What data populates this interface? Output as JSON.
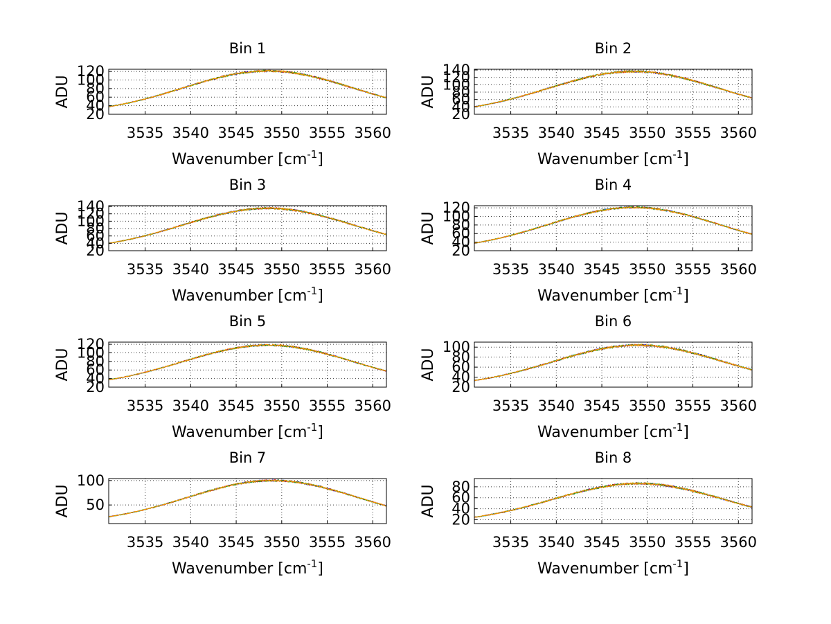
{
  "chart_data": [
    {
      "type": "line",
      "title": "Bin 1",
      "xlabel": "Wavenumber [cm",
      "xlabel_sup": "-1",
      "xlabel_suffix": "]",
      "ylabel": "ADU",
      "xlim": [
        3531,
        3561.5
      ],
      "ylim": [
        20,
        125
      ],
      "xticks": [
        3535,
        3540,
        3545,
        3550,
        3555,
        3560
      ],
      "yticks": [
        20,
        40,
        60,
        80,
        100,
        120
      ],
      "ytick_labels": [
        "20",
        "40",
        "60",
        "80",
        "100",
        "120"
      ],
      "series": [
        {
          "color": "#0000cc",
          "peak": 121,
          "center": 3548.5,
          "width": 16.5,
          "base": 20,
          "noise": 2.2
        }
      ]
    },
    {
      "type": "line",
      "title": "Bin 2",
      "xlabel": "Wavenumber [cm",
      "xlabel_sup": "-1",
      "xlabel_suffix": "]",
      "ylabel": "ADU",
      "xlim": [
        3531,
        3561.5
      ],
      "ylim": [
        20,
        142
      ],
      "xticks": [
        3535,
        3540,
        3545,
        3550,
        3555,
        3560
      ],
      "yticks": [
        20,
        40,
        60,
        80,
        100,
        120,
        140
      ],
      "ytick_labels": [
        "20",
        "40",
        "60",
        "80",
        "100",
        "120",
        "140"
      ],
      "series": [
        {
          "color": "#0000cc",
          "peak": 136,
          "center": 3548.5,
          "width": 16.5,
          "base": 20,
          "noise": 2.6
        }
      ]
    },
    {
      "type": "line",
      "title": "Bin 3",
      "xlabel": "Wavenumber [cm",
      "xlabel_sup": "-1",
      "xlabel_suffix": "]",
      "ylabel": "ADU",
      "xlim": [
        3531,
        3561.5
      ],
      "ylim": [
        20,
        142
      ],
      "xticks": [
        3535,
        3540,
        3545,
        3550,
        3555,
        3560
      ],
      "yticks": [
        20,
        40,
        60,
        80,
        100,
        120,
        140
      ],
      "ytick_labels": [
        "20",
        "40",
        "60",
        "80",
        "100",
        "120",
        "140"
      ],
      "series": [
        {
          "color": "#0000cc",
          "peak": 135,
          "center": 3548.5,
          "width": 16.5,
          "base": 20,
          "noise": 2.4
        }
      ]
    },
    {
      "type": "line",
      "title": "Bin 4",
      "xlabel": "Wavenumber [cm",
      "xlabel_sup": "-1",
      "xlabel_suffix": "]",
      "ylabel": "ADU",
      "xlim": [
        3531,
        3561.5
      ],
      "ylim": [
        20,
        125
      ],
      "xticks": [
        3535,
        3540,
        3545,
        3550,
        3555,
        3560
      ],
      "yticks": [
        20,
        40,
        60,
        80,
        100,
        120
      ],
      "ytick_labels": [
        "20",
        "40",
        "60",
        "80",
        "100",
        "120"
      ],
      "series": [
        {
          "color": "#0000cc",
          "peak": 121,
          "center": 3548.5,
          "width": 16.5,
          "base": 20,
          "noise": 2.0
        }
      ]
    },
    {
      "type": "line",
      "title": "Bin 5",
      "xlabel": "Wavenumber [cm",
      "xlabel_sup": "-1",
      "xlabel_suffix": "]",
      "ylabel": "ADU",
      "xlim": [
        3531,
        3561.5
      ],
      "ylim": [
        20,
        125
      ],
      "xticks": [
        3535,
        3540,
        3545,
        3550,
        3555,
        3560
      ],
      "yticks": [
        20,
        40,
        60,
        80,
        100,
        120
      ],
      "ytick_labels": [
        "20",
        "40",
        "60",
        "80",
        "100",
        "120"
      ],
      "series": [
        {
          "color": "#0000cc",
          "peak": 118,
          "center": 3548.5,
          "width": 16.5,
          "base": 20,
          "noise": 2.0
        }
      ]
    },
    {
      "type": "line",
      "title": "Bin 6",
      "xlabel": "Wavenumber [cm",
      "xlabel_sup": "-1",
      "xlabel_suffix": "]",
      "ylabel": "ADU",
      "xlim": [
        3531,
        3561.5
      ],
      "ylim": [
        20,
        110
      ],
      "xticks": [
        3535,
        3540,
        3545,
        3550,
        3555,
        3560
      ],
      "yticks": [
        20,
        40,
        60,
        80,
        100
      ],
      "ytick_labels": [
        "20",
        "40",
        "60",
        "80",
        "100"
      ],
      "series": [
        {
          "color": "#0000cc",
          "peak": 104,
          "center": 3549,
          "width": 16.5,
          "base": 20,
          "noise": 2.0
        }
      ]
    },
    {
      "type": "line",
      "title": "Bin 7",
      "xlabel": "Wavenumber [cm",
      "xlabel_sup": "-1",
      "xlabel_suffix": "]",
      "ylabel": "ADU",
      "xlim": [
        3531,
        3561.5
      ],
      "ylim": [
        12,
        104
      ],
      "xticks": [
        3535,
        3540,
        3545,
        3550,
        3555,
        3560
      ],
      "yticks": [
        50,
        100
      ],
      "ytick_labels": [
        "50",
        "100"
      ],
      "series": [
        {
          "color": "#0000cc",
          "peak": 100,
          "center": 3549,
          "width": 16.5,
          "base": 12,
          "noise": 1.8
        }
      ]
    },
    {
      "type": "line",
      "title": "Bin 8",
      "xlabel": "Wavenumber [cm",
      "xlabel_sup": "-1",
      "xlabel_suffix": "]",
      "ylabel": "ADU",
      "xlim": [
        3531,
        3561.5
      ],
      "ylim": [
        13,
        95
      ],
      "xticks": [
        3535,
        3540,
        3545,
        3550,
        3555,
        3560
      ],
      "yticks": [
        20,
        40,
        60,
        80
      ],
      "ytick_labels": [
        "20",
        "40",
        "60",
        "80"
      ],
      "series": [
        {
          "color": "#0000cc",
          "peak": 86,
          "center": 3549,
          "width": 16.5,
          "base": 13,
          "noise": 1.8
        }
      ]
    }
  ],
  "overlay_colors": [
    "#0000cc",
    "#cc0000",
    "#00aa00",
    "#ff9900"
  ]
}
